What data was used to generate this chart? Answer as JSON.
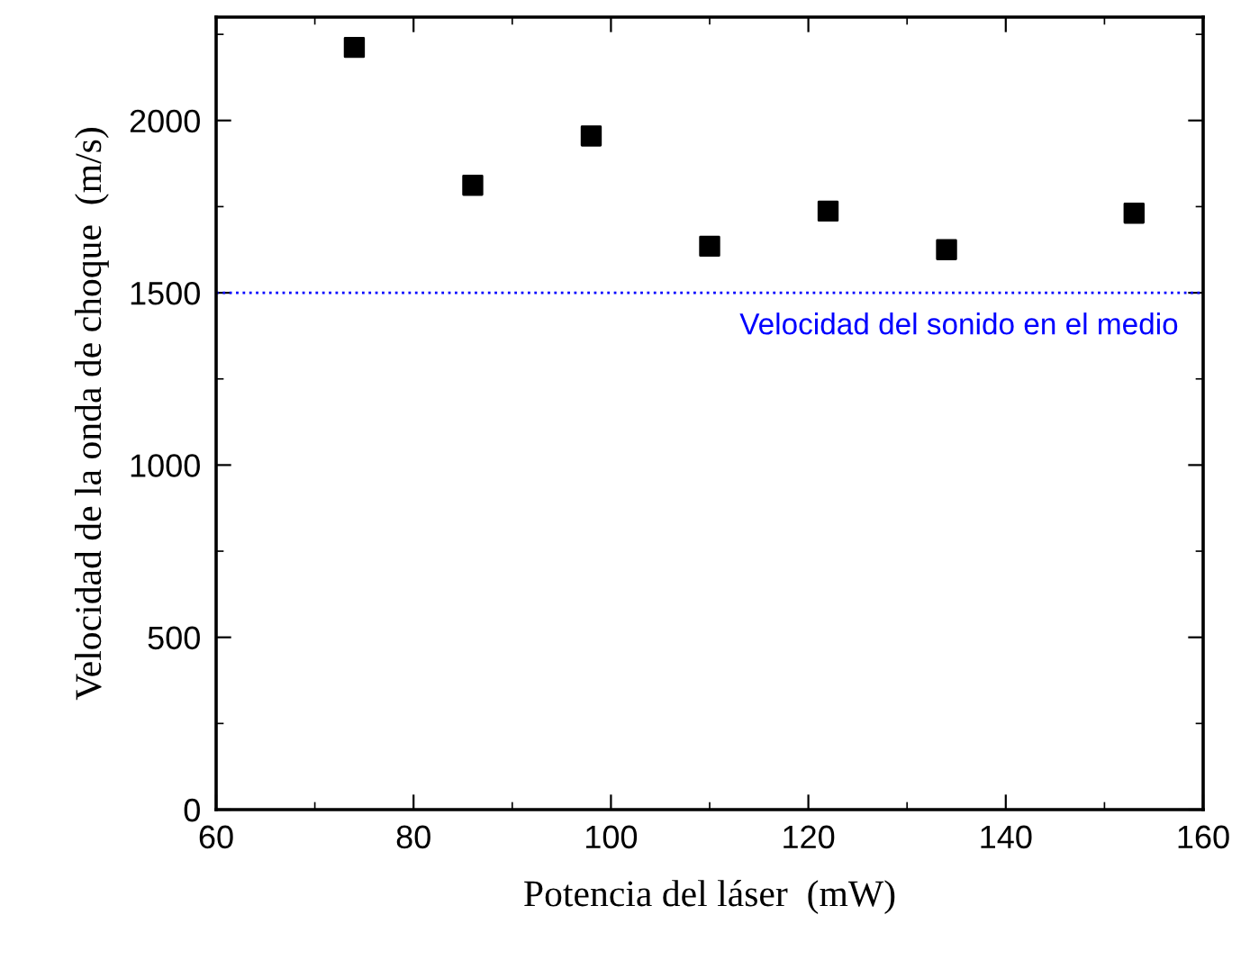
{
  "chart_data": {
    "type": "scatter",
    "xlabel": "Potencia del láser  (mW)",
    "ylabel": "Velocidad de la onda de choque  (m/s)",
    "x": [
      74,
      86,
      98,
      110,
      122,
      134,
      153
    ],
    "series": [
      {
        "color": "#000000",
        "values": [
          2212,
          1812,
          1955,
          1635,
          1737,
          1625,
          1731
        ]
      }
    ],
    "marker": "square",
    "xlim": [
      60,
      160
    ],
    "xticks": [
      60,
      80,
      100,
      120,
      140,
      160
    ],
    "ylim": [
      0,
      2300
    ],
    "yticks": [
      0,
      500,
      1000,
      1500,
      2000
    ],
    "ref_lines": [
      {
        "axis": "y",
        "value": 1500,
        "label": "Velocidad del sonido en el medio",
        "color": "#0000ff",
        "line_style": "dotted"
      }
    ],
    "grid": false,
    "legend": false
  }
}
